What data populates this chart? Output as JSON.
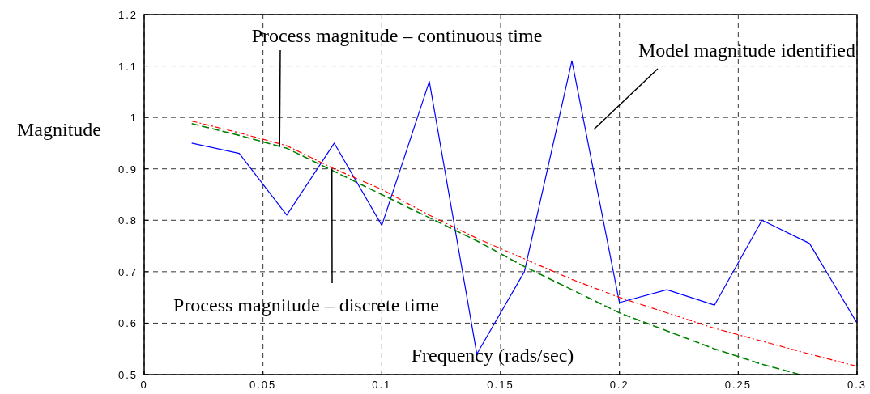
{
  "chart_data": {
    "type": "line",
    "xlabel": "Frequency (rads/sec)",
    "ylabel": "Magnitude",
    "xlim": [
      0,
      0.3
    ],
    "ylim": [
      0.5,
      1.2
    ],
    "xticks": [
      0,
      0.05,
      0.1,
      0.15,
      0.2,
      0.25,
      0.3
    ],
    "yticks": [
      0.5,
      0.6,
      0.7,
      0.8,
      0.9,
      1,
      1.1,
      1.2
    ],
    "grid": true,
    "series": [
      {
        "color": "#0000ff",
        "line_style": "solid",
        "x": [
          0.02,
          0.04,
          0.06,
          0.08,
          0.1,
          0.12,
          0.14,
          0.16,
          0.18,
          0.2,
          0.22,
          0.24,
          0.26,
          0.28,
          0.3
        ],
        "values": [
          0.95,
          0.93,
          0.81,
          0.95,
          0.79,
          1.07,
          0.54,
          0.7,
          1.11,
          0.64,
          0.665,
          0.635,
          0.8,
          0.755,
          0.6
        ]
      },
      {
        "color": "#008000",
        "line_style": "dashed",
        "x": [
          0.02,
          0.04,
          0.06,
          0.08,
          0.1,
          0.12,
          0.14,
          0.16,
          0.18,
          0.2,
          0.22,
          0.24,
          0.26,
          0.276
        ],
        "values": [
          0.988,
          0.965,
          0.94,
          0.895,
          0.85,
          0.805,
          0.76,
          0.71,
          0.665,
          0.62,
          0.585,
          0.55,
          0.52,
          0.5
        ]
      },
      {
        "color": "#ff0000",
        "line_style": "dotted",
        "x": [
          0.02,
          0.04,
          0.06,
          0.08,
          0.1,
          0.12,
          0.14,
          0.16,
          0.18,
          0.2,
          0.22,
          0.24,
          0.26,
          0.28,
          0.3
        ],
        "values": [
          0.993,
          0.97,
          0.945,
          0.9,
          0.86,
          0.81,
          0.765,
          0.725,
          0.685,
          0.65,
          0.62,
          0.59,
          0.565,
          0.54,
          0.516
        ]
      }
    ],
    "annotations": [
      {
        "text": "Process magnitude – continuous time",
        "x": 0.057,
        "y": 0.945
      },
      {
        "text": "Process magnitude – discrete time",
        "x": 0.079,
        "y": 0.9
      },
      "Model magnitude identified"
    ]
  }
}
